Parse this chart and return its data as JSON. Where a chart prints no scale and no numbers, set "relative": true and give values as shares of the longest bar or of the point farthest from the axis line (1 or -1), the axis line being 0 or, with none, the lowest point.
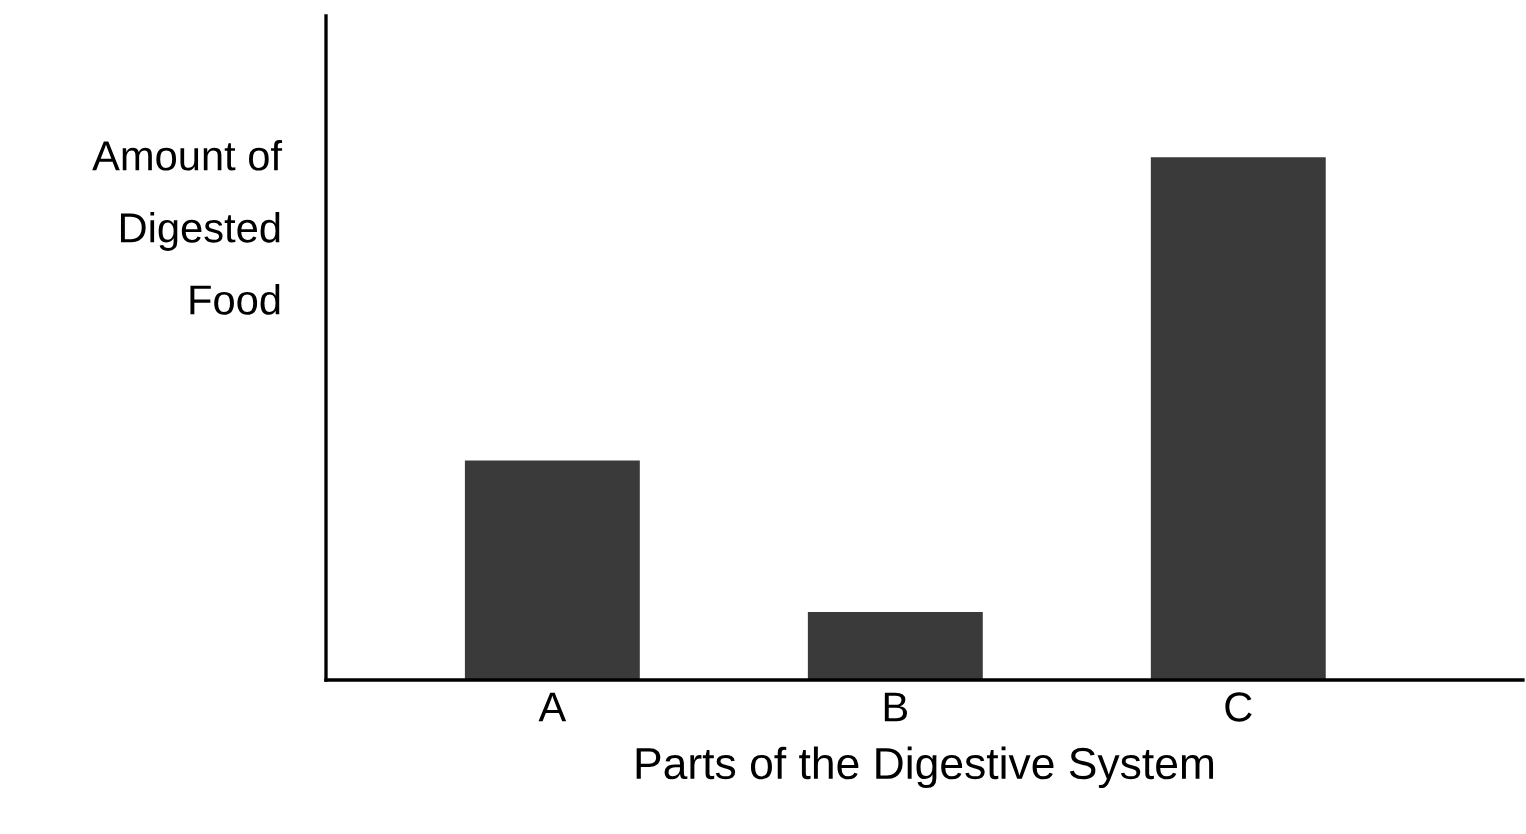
{
  "chart_data": {
    "type": "bar",
    "relative": true,
    "xlabel": "Parts of the Digestive System",
    "ylabel": "Amount of\nDigested\nFood",
    "categories": [
      "A",
      "B",
      "C"
    ],
    "values": [
      0.42,
      0.13,
      1
    ],
    "color": "#3a3a3a",
    "grid": false,
    "legend": false
  }
}
